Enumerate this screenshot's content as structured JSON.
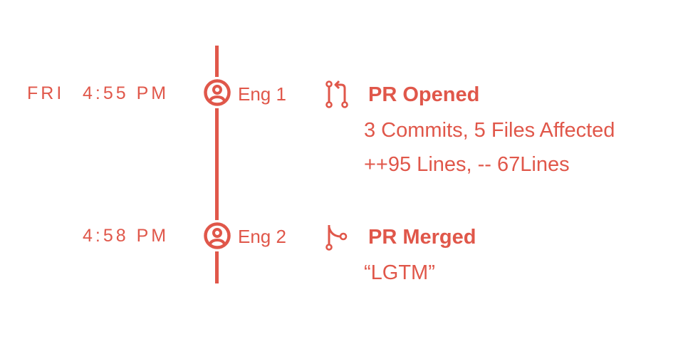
{
  "accent_color": "#e0574a",
  "events": [
    {
      "day": "FRI",
      "time": "4:55 PM",
      "engineer": "Eng 1",
      "icon": "pull-request-icon",
      "title": "PR Opened",
      "details": [
        "3 Commits, 5 Files Affected",
        "++95 Lines, -- 67Lines"
      ]
    },
    {
      "day": "",
      "time": "4:58 PM",
      "engineer": "Eng 2",
      "icon": "merge-icon",
      "title": "PR Merged",
      "details": [
        "“LGTM”"
      ]
    }
  ]
}
